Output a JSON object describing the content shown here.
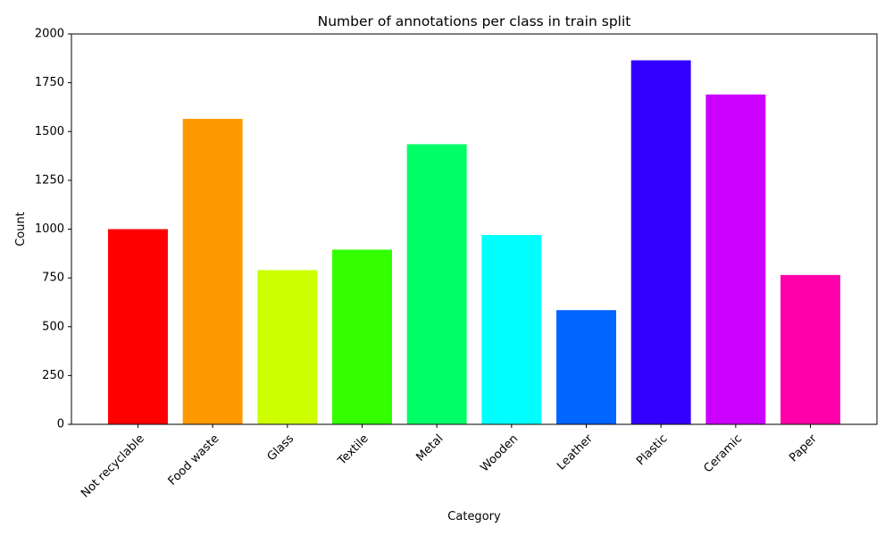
{
  "chart_data": {
    "type": "bar",
    "title": "Number of annotations per class in train split",
    "xlabel": "Category",
    "ylabel": "Count",
    "ylim": [
      0,
      2000
    ],
    "yticks": [
      0,
      250,
      500,
      750,
      1000,
      1250,
      1500,
      1750,
      2000
    ],
    "grid": false,
    "categories": [
      "Not recyclable",
      "Food waste",
      "Glass",
      "Textile",
      "Metal",
      "Wooden",
      "Leather",
      "Plastic",
      "Ceramic",
      "Paper"
    ],
    "values": [
      1000,
      1565,
      790,
      895,
      1435,
      970,
      585,
      1865,
      1690,
      765
    ],
    "colors": [
      "#ff0000",
      "#ff9900",
      "#ccff00",
      "#33ff00",
      "#00ff66",
      "#00ffff",
      "#0066ff",
      "#3300ff",
      "#cc00ff",
      "#ff00aa"
    ]
  }
}
